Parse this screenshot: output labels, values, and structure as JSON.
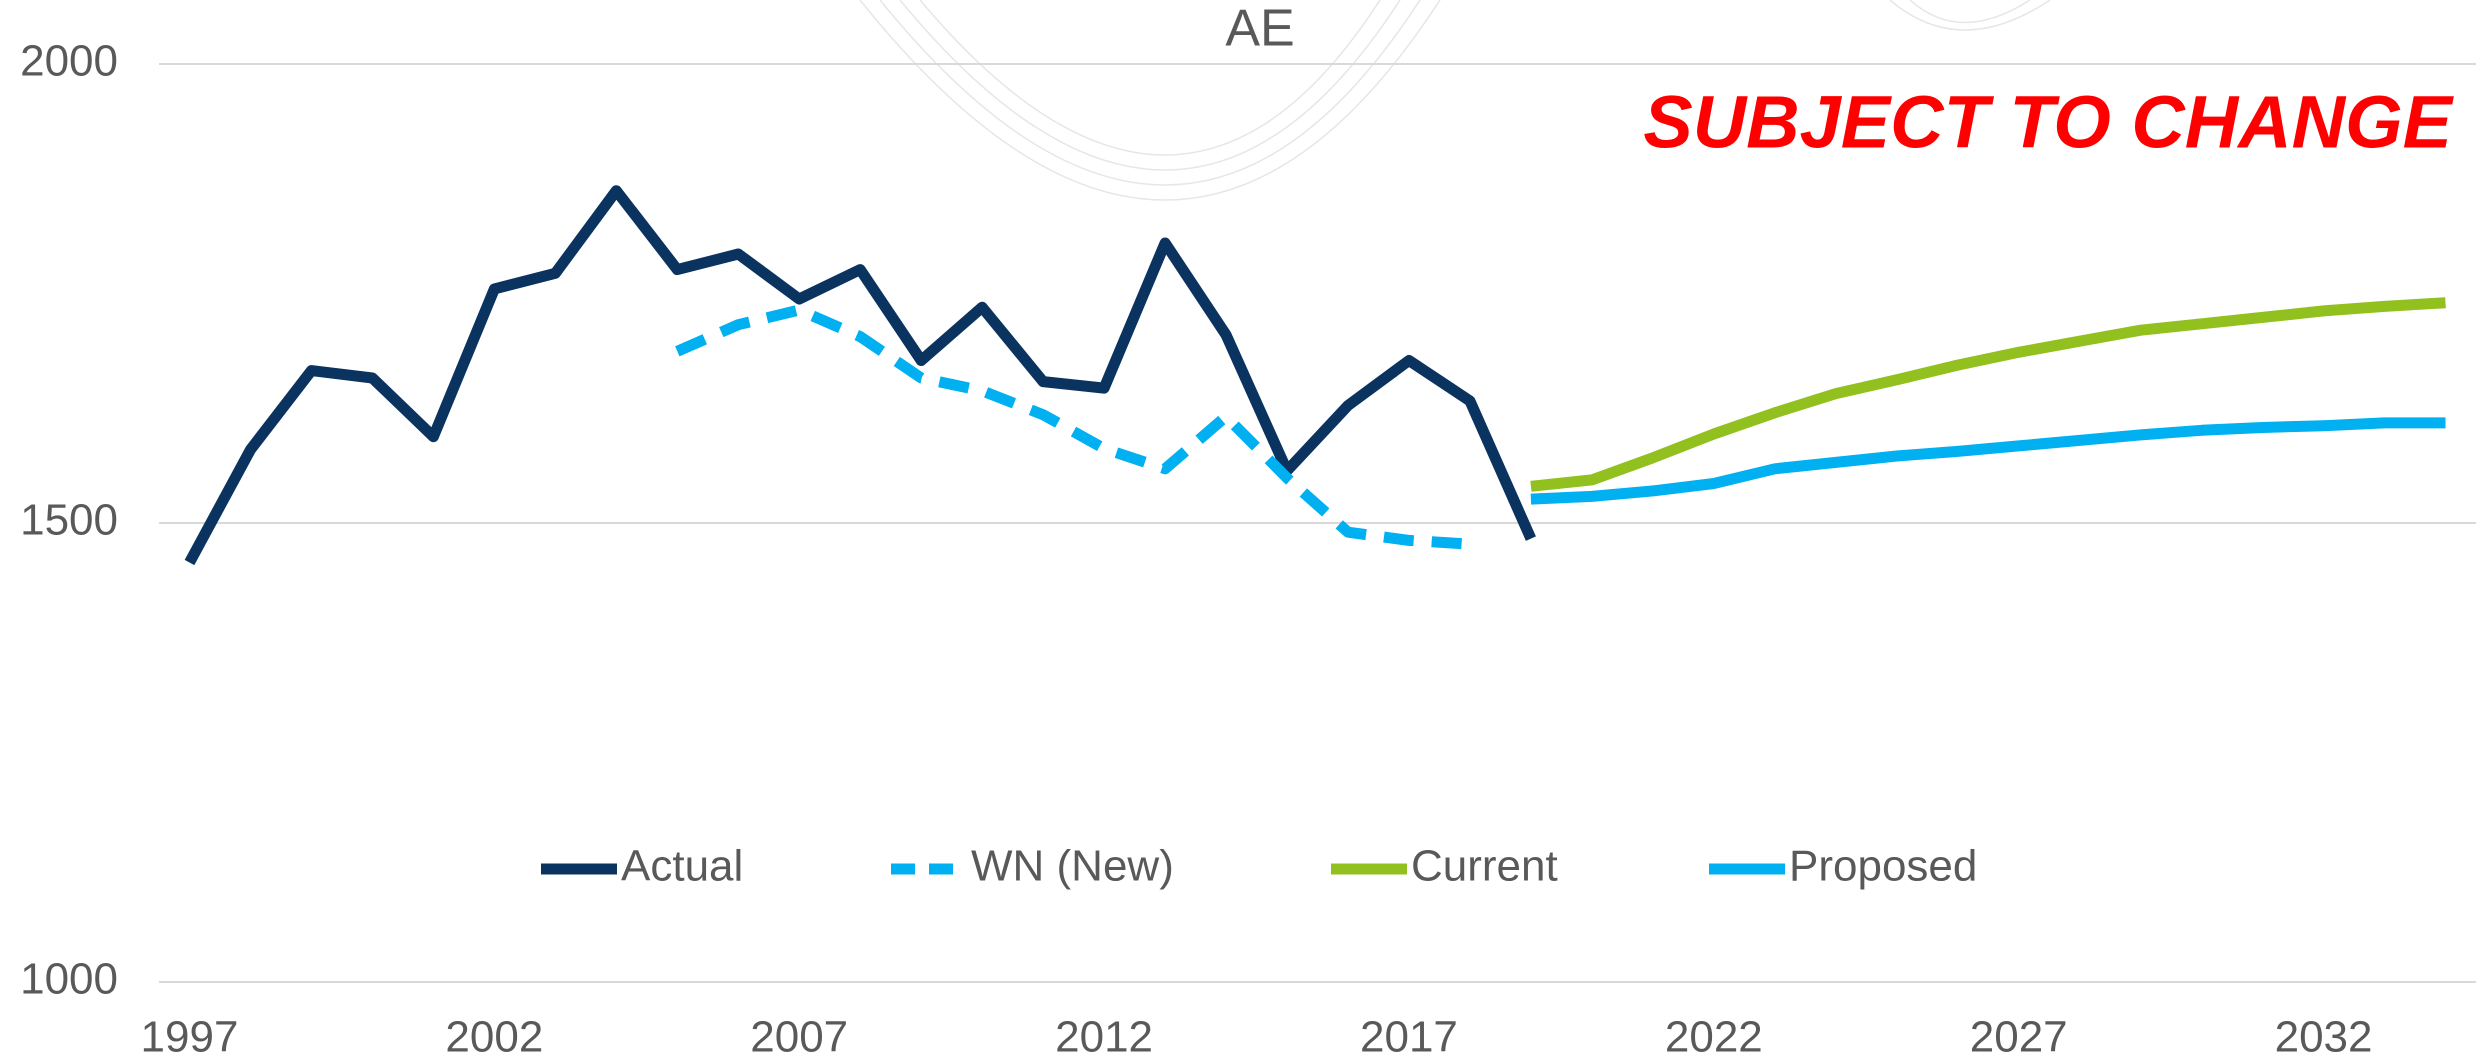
{
  "chart_data": {
    "type": "line",
    "title": "AE",
    "annotation": "SUBJECT TO CHANGE",
    "annotation_color": "#ff0000",
    "xlim": [
      1996.5,
      2034.5
    ],
    "xticks": [
      1997,
      2002,
      2007,
      2012,
      2017,
      2022,
      2027,
      2032
    ],
    "ylim": [
      1000,
      2000
    ],
    "yticks": [
      1000,
      1500,
      2000
    ],
    "grid": true,
    "legend": "bottom",
    "series": [
      {
        "name": "Actual",
        "color": "#0b3360",
        "line_style": "solid",
        "x": [
          1997,
          1998,
          1999,
          2000,
          2001,
          2002,
          2003,
          2004,
          2005,
          2006,
          2007,
          2008,
          2009,
          2010,
          2011,
          2012,
          2013,
          2014,
          2015,
          2016,
          2017,
          2018,
          2019
        ],
        "values": [
          1457,
          1580,
          1666,
          1658,
          1594,
          1755,
          1772,
          1862,
          1776,
          1793,
          1744,
          1776,
          1677,
          1735,
          1654,
          1647,
          1805,
          1705,
          1557,
          1628,
          1677,
          1633,
          1483
        ]
      },
      {
        "name": "WN (New)",
        "color": "#00b0f0",
        "line_style": "dashed",
        "x": [
          2005,
          2006,
          2007,
          2008,
          2009,
          2010,
          2011,
          2012,
          2013,
          2014,
          2015,
          2016,
          2017,
          2018
        ],
        "values": [
          1687,
          1716,
          1732,
          1703,
          1658,
          1644,
          1618,
          1581,
          1559,
          1616,
          1549,
          1490,
          1481,
          1477
        ]
      },
      {
        "name": "Current",
        "color": "#92c01f",
        "line_style": "solid",
        "x": [
          2019,
          2020,
          2021,
          2022,
          2023,
          2024,
          2025,
          2026,
          2027,
          2028,
          2029,
          2030,
          2031,
          2032,
          2033,
          2034
        ],
        "values": [
          1540,
          1547,
          1571,
          1597,
          1620,
          1641,
          1656,
          1672,
          1686,
          1698,
          1710,
          1717,
          1724,
          1731,
          1736,
          1740
        ]
      },
      {
        "name": "Proposed",
        "color": "#00b0f0",
        "line_style": "solid",
        "x": [
          2019,
          2020,
          2021,
          2022,
          2023,
          2024,
          2025,
          2026,
          2027,
          2028,
          2029,
          2030,
          2031,
          2032,
          2033,
          2034
        ],
        "values": [
          1526,
          1529,
          1535,
          1543,
          1559,
          1566,
          1573,
          1578,
          1584,
          1590,
          1596,
          1601,
          1604,
          1606,
          1609,
          1609
        ]
      }
    ]
  }
}
